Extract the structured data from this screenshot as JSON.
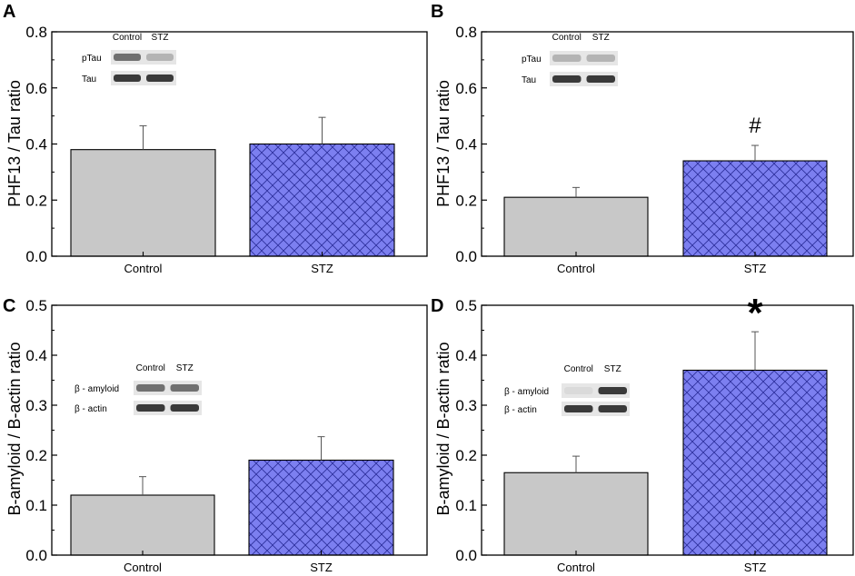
{
  "colors": {
    "control_fill": "#c8c8c8",
    "stz_fill": "#7c7ff0",
    "stz_hatch": "#2a2d9a",
    "axis": "#000000",
    "band_dark": "#3a3a3a",
    "band_mid": "#707070",
    "band_light": "#b4b4b4"
  },
  "chart_data": [
    {
      "panel": "A",
      "type": "bar",
      "categories": [
        "Control",
        "STZ"
      ],
      "values": [
        0.38,
        0.4
      ],
      "errors": [
        0.085,
        0.095
      ],
      "ylabel": "PHF13 / Tau ratio",
      "ylim": [
        0,
        0.8
      ],
      "yticks": [
        "0.0",
        "0.2",
        "0.4",
        "0.6",
        "0.8"
      ],
      "significance": "",
      "blot": {
        "columns": [
          "Control",
          "STZ"
        ],
        "rows": [
          {
            "label": "pTau",
            "intensity": [
              "mid",
              "light"
            ]
          },
          {
            "label": "Tau",
            "intensity": [
              "dark",
              "dark"
            ]
          }
        ]
      }
    },
    {
      "panel": "B",
      "type": "bar",
      "categories": [
        "Control",
        "STZ"
      ],
      "values": [
        0.21,
        0.34
      ],
      "errors": [
        0.035,
        0.055
      ],
      "ylabel": "PHF13 / Tau ratio",
      "ylim": [
        0,
        0.8
      ],
      "yticks": [
        "0.0",
        "0.2",
        "0.4",
        "0.6",
        "0.8"
      ],
      "significance": "#",
      "blot": {
        "columns": [
          "Control",
          "STZ"
        ],
        "rows": [
          {
            "label": "pTau",
            "intensity": [
              "light",
              "light"
            ]
          },
          {
            "label": "Tau",
            "intensity": [
              "dark",
              "dark"
            ]
          }
        ]
      }
    },
    {
      "panel": "C",
      "type": "bar",
      "categories": [
        "Control",
        "STZ"
      ],
      "values": [
        0.12,
        0.19
      ],
      "errors": [
        0.037,
        0.047
      ],
      "ylabel": "B-amyloid / B-actin ratio",
      "ylim": [
        0,
        0.5
      ],
      "yticks": [
        "0.0",
        "0.1",
        "0.2",
        "0.3",
        "0.4",
        "0.5"
      ],
      "significance": "",
      "blot": {
        "columns": [
          "Control",
          "STZ"
        ],
        "rows": [
          {
            "label": "β - amyloid",
            "intensity": [
              "mid",
              "mid"
            ]
          },
          {
            "label": "β - actin",
            "intensity": [
              "dark",
              "dark"
            ]
          }
        ]
      }
    },
    {
      "panel": "D",
      "type": "bar",
      "categories": [
        "Control",
        "STZ"
      ],
      "values": [
        0.165,
        0.37
      ],
      "errors": [
        0.033,
        0.077
      ],
      "ylabel": "B-amyloid / B-actin ratio",
      "ylim": [
        0,
        0.5
      ],
      "yticks": [
        "0.0",
        "0.1",
        "0.2",
        "0.3",
        "0.4",
        "0.5"
      ],
      "significance": "*",
      "blot": {
        "columns": [
          "Control",
          "STZ"
        ],
        "rows": [
          {
            "label": "β - amyloid",
            "intensity": [
              "faint",
              "dark"
            ]
          },
          {
            "label": "β - actin",
            "intensity": [
              "dark",
              "dark"
            ]
          }
        ]
      }
    }
  ]
}
